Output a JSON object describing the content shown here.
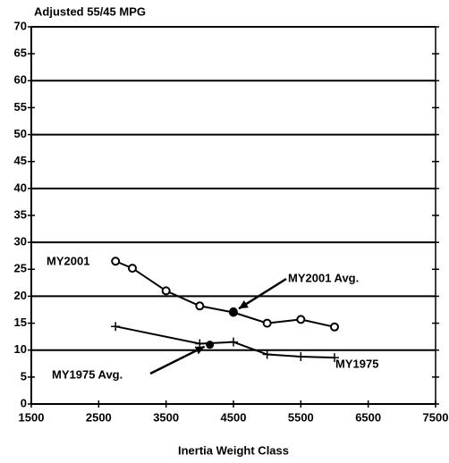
{
  "chart_data": {
    "type": "line",
    "title": "Adjusted 55/45 MPG",
    "xlabel": "Inertia Weight Class",
    "xlim": [
      1500,
      7500
    ],
    "xticks": [
      1500,
      2500,
      3500,
      4500,
      5500,
      6500,
      7500
    ],
    "ylim": [
      0,
      70
    ],
    "yticks": [
      0,
      5,
      10,
      15,
      20,
      25,
      30,
      35,
      40,
      45,
      50,
      55,
      60,
      65,
      70
    ],
    "grid_yticks": [
      10,
      20,
      30,
      40,
      50,
      60,
      70
    ],
    "series": [
      {
        "name": "MY2001",
        "marker": "circle",
        "color": "#000000",
        "x": [
          2750,
          3000,
          3500,
          4000,
          4500,
          5000,
          5500,
          6000
        ],
        "values": [
          26.5,
          25.2,
          21,
          18.2,
          17,
          15,
          15.7,
          14.3
        ]
      },
      {
        "name": "MY1975",
        "marker": "plus",
        "color": "#000000",
        "x": [
          2750,
          4000,
          4500,
          5000,
          5500,
          6000
        ],
        "values": [
          14.4,
          11.2,
          11.5,
          9.2,
          8.8,
          8.6
        ]
      }
    ],
    "averages": [
      {
        "label": "MY2001 Avg.",
        "x": 4500,
        "value": 17.2
      },
      {
        "label": "MY1975 Avg.",
        "x": 4150,
        "value": 11
      }
    ]
  }
}
